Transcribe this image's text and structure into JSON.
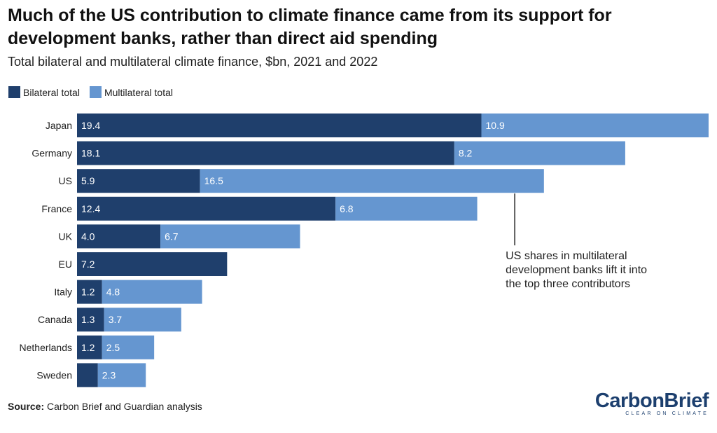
{
  "header": {
    "title": "Much of the US contribution to climate finance came from its support for development banks, rather than direct aid spending",
    "subtitle": "Total bilateral and multilateral climate finance, $bn, 2021 and 2022"
  },
  "colors": {
    "bilateral": "#1f3f6c",
    "multilateral": "#6596d0",
    "annotation_line": "#222222",
    "text": "#222222"
  },
  "chart_data": {
    "type": "bar",
    "orientation": "horizontal",
    "stacked": true,
    "title": "Much of the US contribution to climate finance came from its support for development banks, rather than direct aid spending",
    "subtitle": "Total bilateral and multilateral climate finance, $bn, 2021 and 2022",
    "categories": [
      "Japan",
      "Germany",
      "US",
      "France",
      "UK",
      "EU",
      "Italy",
      "Canada",
      "Netherlands",
      "Sweden"
    ],
    "series": [
      {
        "name": "Bilateral total",
        "values": [
          19.4,
          18.1,
          5.9,
          12.4,
          4.0,
          7.2,
          1.2,
          1.3,
          1.2,
          1.0
        ],
        "labels": [
          "19.4",
          "18.1",
          "5.9",
          "12.4",
          "4.0",
          "7.2",
          "1.2",
          "1.3",
          "1.2",
          ""
        ]
      },
      {
        "name": "Multilateral total",
        "values": [
          10.9,
          8.2,
          16.5,
          6.8,
          6.7,
          0,
          4.8,
          3.7,
          2.5,
          2.3
        ],
        "labels": [
          "10.9",
          "8.2",
          "16.5",
          "6.8",
          "6.7",
          "",
          "4.8",
          "3.7",
          "2.5",
          "2.3"
        ]
      }
    ],
    "xlim": [
      0,
      30.3
    ],
    "grid": false,
    "legend": "top-left",
    "annotation": {
      "lines": [
        "US shares in multilateral",
        "development banks lift it into",
        "the top three contributors"
      ],
      "category": "US",
      "value": 21.0
    }
  },
  "footer": {
    "source_label": "Source:",
    "source_text": " Carbon Brief and Guardian analysis",
    "logo_name": "CarbonBrief",
    "logo_tagline": "CLEAR ON CLIMATE"
  }
}
